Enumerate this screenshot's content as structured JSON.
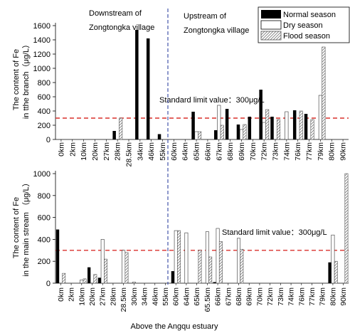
{
  "legend": {
    "placement": "top-right",
    "entries": [
      {
        "label": "Normal season",
        "style": "solid-black"
      },
      {
        "label": "Dry season",
        "style": "white"
      },
      {
        "label": "Flood season",
        "style": "hatched"
      }
    ]
  },
  "annotations": {
    "downstream_line1": "Downstream of",
    "downstream_line2": "Zongtongka village",
    "upstream_line1": "Upstream of",
    "upstream_line2": "Zongtongka village",
    "xlabel": "Above the Angqu estuary"
  },
  "colors": {
    "normal": "#000000",
    "dry": "#ffffff",
    "flood_hatch": "#777777",
    "limit_line": "#d9302c",
    "divider": "#4455aa"
  },
  "chart_data": [
    {
      "type": "bar",
      "ylabel_line1": "The content of Fe",
      "ylabel_line2": "in tthe branch（μg/L）",
      "ylim": [
        0,
        1600
      ],
      "yticks": [
        0,
        200,
        400,
        600,
        800,
        1000,
        1200,
        1400,
        1600
      ],
      "limit_value": 300,
      "limit_label": "Standard limit value：300μg/L",
      "categories": [
        "0km",
        "2km",
        "10km",
        "20km",
        "27km",
        "28km",
        "28.5km",
        "34km",
        "46km",
        "55km",
        "60km",
        "64km",
        "65km",
        "66km",
        "67km",
        "68km",
        "69km",
        "70km",
        "72km",
        "73km",
        "74km",
        "76km",
        "77km",
        "79km",
        "80km",
        "90km"
      ],
      "series": [
        {
          "name": "Normal season",
          "values": [
            0,
            0,
            0,
            0,
            0,
            120,
            0,
            1540,
            1420,
            75,
            0,
            0,
            390,
            0,
            130,
            430,
            210,
            320,
            700,
            320,
            0,
            410,
            360,
            0,
            0,
            0
          ]
        },
        {
          "name": "Dry season",
          "values": [
            0,
            0,
            0,
            0,
            0,
            0,
            0,
            0,
            0,
            0,
            0,
            0,
            110,
            0,
            480,
            0,
            140,
            0,
            240,
            0,
            390,
            0,
            0,
            620,
            0,
            0
          ]
        },
        {
          "name": "Flood season",
          "values": [
            0,
            0,
            0,
            0,
            0,
            300,
            0,
            0,
            0,
            0,
            0,
            0,
            110,
            0,
            200,
            0,
            210,
            0,
            420,
            280,
            0,
            400,
            280,
            1300,
            0,
            0
          ]
        }
      ]
    },
    {
      "type": "bar",
      "ylabel_line1": "The content of Fe",
      "ylabel_line2": "in the main stream （μg/L）",
      "ylim": [
        0,
        1000
      ],
      "yticks": [
        0,
        200,
        400,
        600,
        800,
        1000
      ],
      "limit_value": 300,
      "limit_label": "Standard limit value：300μg/L",
      "categories": [
        "0km",
        "2km",
        "10km",
        "20km",
        "27km",
        "28km",
        "28.5km",
        "30km",
        "34km",
        "46km",
        "55km",
        "60km",
        "64km",
        "65km",
        "65.5km",
        "66km",
        "67km",
        "68km",
        "69km",
        "70km",
        "72km",
        "73km",
        "74km",
        "76km",
        "77km",
        "79km",
        "80km",
        "90km"
      ],
      "series": [
        {
          "name": "Normal season",
          "values": [
            490,
            0,
            0,
            145,
            50,
            0,
            0,
            0,
            0,
            0,
            0,
            110,
            0,
            0,
            0,
            10,
            0,
            0,
            0,
            0,
            0,
            0,
            0,
            0,
            0,
            0,
            190,
            0
          ]
        },
        {
          "name": "Dry season",
          "values": [
            0,
            0,
            30,
            0,
            400,
            0,
            300,
            10,
            0,
            0,
            0,
            480,
            460,
            0,
            470,
            500,
            0,
            410,
            0,
            0,
            0,
            0,
            0,
            0,
            0,
            0,
            440,
            0
          ]
        },
        {
          "name": "Flood season",
          "values": [
            90,
            0,
            40,
            80,
            220,
            0,
            280,
            0,
            0,
            0,
            0,
            480,
            0,
            300,
            240,
            380,
            0,
            310,
            0,
            0,
            0,
            0,
            0,
            0,
            0,
            0,
            200,
            1000
          ]
        }
      ]
    }
  ]
}
